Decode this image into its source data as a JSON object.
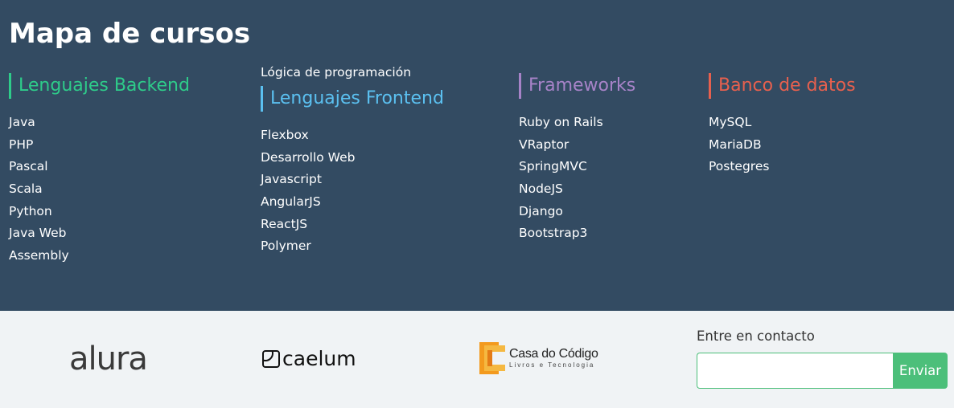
{
  "map": {
    "title": "Mapa de cursos",
    "backend": {
      "title": "Lenguajes Backend",
      "color": "#2ecc8a",
      "items": [
        "Java",
        "PHP",
        "Pascal",
        "Scala",
        "Python",
        "Java Web",
        "Assembly"
      ]
    },
    "frontend": {
      "top_link": "Lógica de programación",
      "title": "Lenguajes Frontend",
      "color": "#5bc0f0",
      "items": [
        "Flexbox",
        "Desarrollo Web",
        "Javascript",
        "AngularJS",
        "ReactJS",
        "Polymer"
      ]
    },
    "frameworks": {
      "title": "Frameworks",
      "color": "#a783c8",
      "items": [
        "Ruby on Rails",
        "VRaptor",
        "SpringMVC",
        "NodeJS",
        "Django",
        "Bootstrap3"
      ]
    },
    "databases": {
      "title": "Banco de datos",
      "color": "#e7604e",
      "items": [
        "MySQL",
        "MariaDB",
        "Postegres"
      ]
    }
  },
  "footer": {
    "logos": {
      "alura": "alura",
      "caelum": "caelum",
      "casa_name": "Casa do Código",
      "casa_sub": "Livros e Tecnologia"
    },
    "contact": {
      "label": "Entre en contacto",
      "input_value": "",
      "button_label": "Enviar"
    }
  },
  "colors": {
    "header_bg": "#334b62",
    "footer_bg": "#f0f3f5",
    "accent_green": "#4cbf7a"
  }
}
